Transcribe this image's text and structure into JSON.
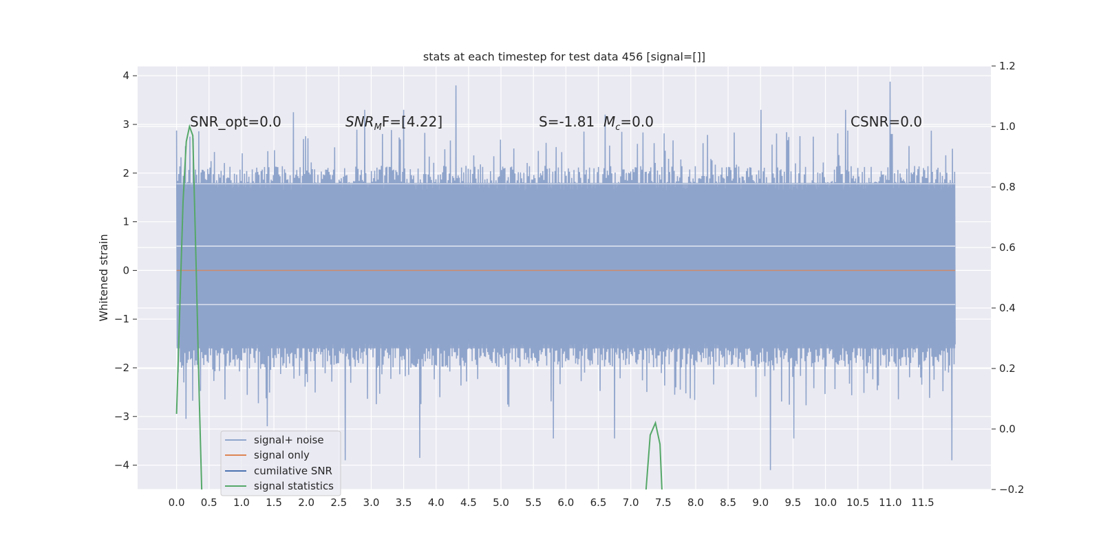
{
  "chart_data": {
    "type": "line",
    "title": "stats at each timestep for test data 456 [signal=[]]",
    "ylabel": "Whitened strain",
    "xlabel": "",
    "xlim": [
      -0.6,
      12.55
    ],
    "ylim": [
      -4.5,
      4.2
    ],
    "y2lim": [
      -0.2,
      1.2
    ],
    "x_ticks": [
      0.0,
      0.5,
      1.0,
      1.5,
      2.0,
      2.5,
      3.0,
      3.5,
      4.0,
      4.5,
      5.0,
      5.5,
      6.0,
      6.5,
      7.0,
      7.5,
      8.0,
      8.5,
      9.0,
      9.5,
      10.0,
      10.5,
      11.0,
      11.5
    ],
    "x_tick_labels": [
      "0.0",
      "0.5",
      "1.0",
      "1.5",
      "2.0",
      "2.5",
      "3.0",
      "3.5",
      "4.0",
      "4.5",
      "5.0",
      "5.5",
      "6.0",
      "6.5",
      "7.0",
      "7.5",
      "8.0",
      "8.5",
      "9.0",
      "9.5",
      "10.0",
      "10.5",
      "11.0",
      "11.5"
    ],
    "y_ticks": [
      4,
      3,
      2,
      1,
      0,
      -1,
      -2,
      -3,
      -4
    ],
    "y_tick_labels": [
      "4",
      "3",
      "2",
      "1",
      "0",
      "−1",
      "−2",
      "−3",
      "−4"
    ],
    "y2_ticks": [
      1.2,
      1.0,
      0.8,
      0.6,
      0.4,
      0.2,
      0.0,
      -0.2
    ],
    "y2_tick_labels": [
      "1.2",
      "1.0",
      "0.8",
      "0.6",
      "0.4",
      "0.2",
      "0.0",
      "−0.2"
    ],
    "grid": true,
    "legend": {
      "placement": "lower-left",
      "entries": [
        "signal+ noise",
        "signal only",
        "cumilative SNR",
        "signal statistics"
      ]
    },
    "annotations": {
      "snr_opt": "SNR_opt=0.0",
      "snr_mf_main": "SNR",
      "snr_mf_sub": "M",
      "snr_mf_rest": "F=[4.22]",
      "s_stat": "S=-1.81",
      "mc_main": "M",
      "mc_sub": "c",
      "mc_rest": "=0.0",
      "csnr": "CSNR=0.0"
    },
    "series": [
      {
        "name": "signal+ noise",
        "color": "#8fa4cb",
        "x_range": [
          0.0,
          12.0
        ],
        "sample_count": 1400,
        "core_band": [
          -1.6,
          1.8
        ],
        "peak_spikes": [
          {
            "x": 0.2,
            "y": 2.75
          },
          {
            "x": 1.8,
            "y": 3.25
          },
          {
            "x": 2.9,
            "y": 3.3
          },
          {
            "x": 3.5,
            "y": 3.3
          },
          {
            "x": 4.3,
            "y": 3.8
          },
          {
            "x": 6.6,
            "y": 3.2
          },
          {
            "x": 9.0,
            "y": 3.3
          },
          {
            "x": 10.3,
            "y": 3.3
          },
          {
            "x": 11.0,
            "y": 3.88
          },
          {
            "x": 11.95,
            "y": 2.5
          }
        ],
        "trough_spikes": [
          {
            "x": 0.15,
            "y": -3.05
          },
          {
            "x": 1.4,
            "y": -3.2
          },
          {
            "x": 2.6,
            "y": -3.9
          },
          {
            "x": 3.75,
            "y": -3.85
          },
          {
            "x": 5.8,
            "y": -3.45
          },
          {
            "x": 6.75,
            "y": -3.45
          },
          {
            "x": 9.15,
            "y": -4.1
          },
          {
            "x": 9.5,
            "y": -3.45
          },
          {
            "x": 11.95,
            "y": -3.9
          }
        ]
      },
      {
        "name": "signal only",
        "color": "#dd8452",
        "x": [
          0.0,
          12.0
        ],
        "y": [
          0.0,
          0.0
        ]
      },
      {
        "name": "cumilative SNR",
        "color": "#4c72b0",
        "x": [],
        "y": []
      },
      {
        "name": "signal statistics",
        "color": "#55a868",
        "axis": "right",
        "segments": [
          {
            "x": [
              0.0,
              0.05,
              0.1,
              0.15,
              0.2,
              0.25,
              0.3,
              0.35,
              0.4
            ],
            "y": [
              0.05,
              0.4,
              0.75,
              0.95,
              1.0,
              0.97,
              0.55,
              0.1,
              -0.3
            ]
          },
          {
            "x": [
              7.2,
              7.3,
              7.38,
              7.45,
              7.5
            ],
            "y": [
              -0.3,
              -0.02,
              0.02,
              -0.05,
              -0.3
            ]
          }
        ]
      }
    ]
  }
}
